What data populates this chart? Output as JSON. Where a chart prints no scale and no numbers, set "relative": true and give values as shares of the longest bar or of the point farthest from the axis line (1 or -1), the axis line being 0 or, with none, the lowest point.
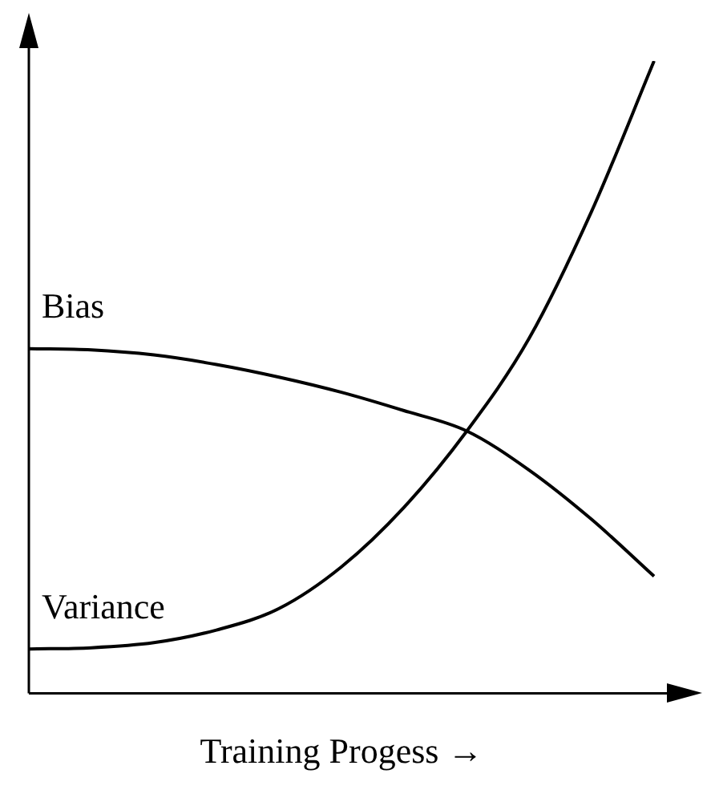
{
  "chart_data": {
    "type": "line",
    "relative": true,
    "xlabel": "Training Progess →",
    "categories": [
      null,
      null,
      null,
      null,
      null,
      null,
      null,
      null,
      null,
      null,
      null
    ],
    "series": [
      {
        "name": "Bias",
        "color": "#000000",
        "values": [
          0.545,
          0.543,
          0.535,
          0.52,
          0.5,
          0.476,
          0.447,
          0.415,
          0.353,
          0.275,
          0.185
        ]
      },
      {
        "name": "Variance",
        "color": "#000000",
        "values": [
          0.07,
          0.072,
          0.08,
          0.1,
          0.134,
          0.2,
          0.294,
          0.414,
          0.561,
          0.762,
          1
        ]
      }
    ],
    "legend": false,
    "grid": false,
    "marker": "none",
    "line_style": "solid"
  }
}
